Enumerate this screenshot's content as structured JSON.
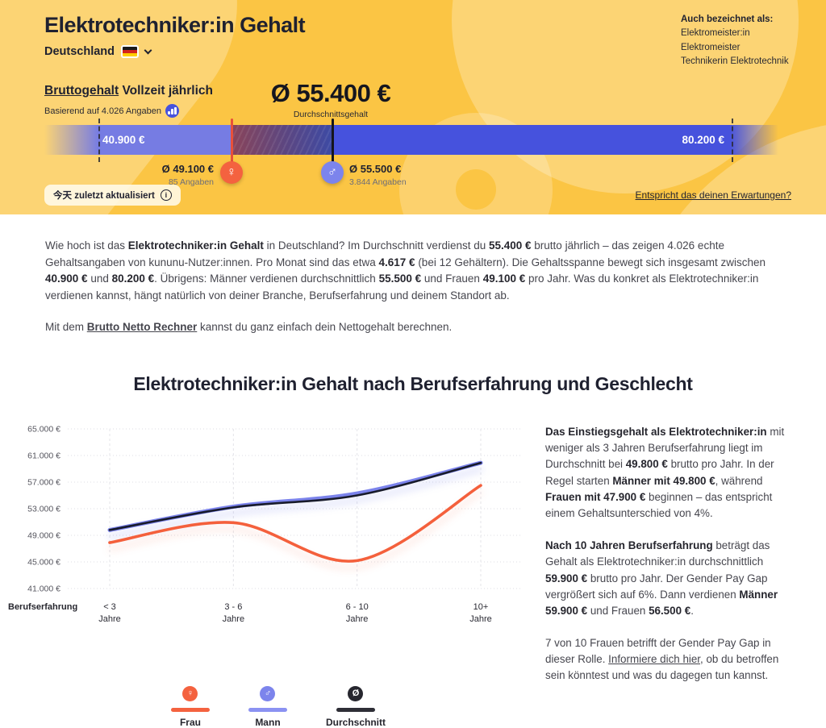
{
  "header": {
    "title": "Elektrotechniker:in Gehalt",
    "country": "Deutschland",
    "also_known": {
      "heading": "Auch bezeichnet als:",
      "items": [
        "Elektromeister:in",
        "Elektromeister",
        "Technikerin Elektrotechnik"
      ]
    },
    "salary_type_link": "Bruttogehalt",
    "salary_type_rest": " Vollzeit jährlich",
    "based_on": "Basierend auf 4.026 Angaben",
    "average": {
      "value": "Ø 55.400 €",
      "label": "Durchschnittsgehalt"
    },
    "range": {
      "min": "40.900 €",
      "max": "80.200 €"
    },
    "female": {
      "symbol": "♀",
      "value": "Ø 49.100 €",
      "count": "85 Angaben"
    },
    "male": {
      "symbol": "♂",
      "value": "Ø 55.500 €",
      "count": "3.844 Angaben"
    },
    "updated": "今天 zuletzt aktualisiert",
    "info_icon": "i",
    "expectations_link": "Entspricht das deinen Erwartungen?"
  },
  "intro": {
    "p1": [
      {
        "text": "Wie hoch ist das "
      },
      {
        "text": "Elektrotechniker:in Gehalt",
        "bold": true
      },
      {
        "text": " in Deutschland? Im Durchschnitt verdienst du "
      },
      {
        "text": "55.400 €",
        "bold": true
      },
      {
        "text": " brutto jährlich – das zeigen 4.026 echte Gehaltsangaben von kununu-Nutzer:innen. Pro Monat sind das etwa "
      },
      {
        "text": "4.617 €",
        "bold": true
      },
      {
        "text": " (bei 12 Gehältern). Die Gehaltsspanne bewegt sich insgesamt zwischen "
      },
      {
        "text": "40.900 €",
        "bold": true
      },
      {
        "text": " und "
      },
      {
        "text": "80.200 €",
        "bold": true
      },
      {
        "text": ". Übrigens: Männer verdienen durchschnittlich "
      },
      {
        "text": "55.500 €",
        "bold": true
      },
      {
        "text": " und Frauen "
      },
      {
        "text": "49.100 €",
        "bold": true
      },
      {
        "text": " pro Jahr. Was du konkret als Elektrotechniker:in verdienen kannst, hängt natürlich von deiner Branche, Berufserfahrung und deinem Standort ab."
      }
    ],
    "p2": [
      {
        "text": "Mit dem "
      },
      {
        "text": "Brutto Netto Rechner",
        "bold": true,
        "link": true
      },
      {
        "text": " kannst du ganz einfach dein Nettogehalt berechnen."
      }
    ]
  },
  "chart_section": {
    "title": "Elektrotechniker:in Gehalt nach Berufserfahrung und Geschlecht"
  },
  "chart_data": {
    "type": "line",
    "title": "Elektrotechniker:in Gehalt nach Berufserfahrung und Geschlecht",
    "xlabel": "Berufserfahrung",
    "ylabel": "",
    "categories": [
      "< 3 Jahre",
      "3 - 6 Jahre",
      "6 - 10 Jahre",
      "10+ Jahre"
    ],
    "x_tick_lines": [
      [
        "< 3",
        "Jahre"
      ],
      [
        "3 - 6",
        "Jahre"
      ],
      [
        "6 - 10",
        "Jahre"
      ],
      [
        "10+",
        "Jahre"
      ]
    ],
    "series": [
      {
        "name": "Mann",
        "color": "#7B83EB",
        "values": [
          49800,
          53300,
          55300,
          59900
        ]
      },
      {
        "name": "Durchschnitt",
        "color": "#181B2B",
        "values": [
          49800,
          53200,
          55000,
          59900
        ]
      },
      {
        "name": "Frau",
        "color": "#F4603C",
        "values": [
          47900,
          50900,
          45200,
          56500
        ]
      }
    ],
    "ylim": [
      41000,
      65000
    ],
    "y_ticks": [
      65000,
      61000,
      57000,
      53000,
      49000,
      45000,
      41000
    ],
    "y_tick_labels": [
      "65.000 €",
      "61.000 €",
      "57.000 €",
      "53.000 €",
      "49.000 €",
      "45.000 €",
      "41.000 €"
    ],
    "grid": true,
    "legend_position": "bottom"
  },
  "sidebar": {
    "p1": [
      {
        "text": "Das Einstiegsgehalt als Elektrotechniker:in",
        "bold": true
      },
      {
        "text": " mit weniger als 3 Jahren Berufserfahrung liegt im Durchschnitt bei "
      },
      {
        "text": "49.800 €",
        "bold": true
      },
      {
        "text": " brutto pro Jahr. In der Regel starten "
      },
      {
        "text": "Männer mit 49.800 €",
        "bold": true
      },
      {
        "text": ", während "
      },
      {
        "text": "Frauen mit 47.900 €",
        "bold": true
      },
      {
        "text": " beginnen – das entspricht einem Gehaltsunterschied von 4%."
      }
    ],
    "p2": [
      {
        "text": "Nach 10 Jahren Berufserfahrung",
        "bold": true
      },
      {
        "text": " beträgt das Gehalt als Elektrotechniker:in durchschnittlich "
      },
      {
        "text": "59.900 €",
        "bold": true
      },
      {
        "text": " brutto pro Jahr. Der Gender Pay Gap vergrößert sich auf 6%. Dann verdienen "
      },
      {
        "text": "Männer 59.900 €",
        "bold": true
      },
      {
        "text": " und Frauen "
      },
      {
        "text": "56.500 €",
        "bold": true
      },
      {
        "text": "."
      }
    ],
    "p3": [
      {
        "text": "7 von 10 Frauen betrifft der Gender Pay Gap in dieser Rolle. "
      },
      {
        "text": "Informiere dich hier",
        "link": true
      },
      {
        "text": ", ob du betroffen sein könntest und was du dagegen tun kannst."
      }
    ]
  },
  "legend": {
    "items": [
      {
        "label": "Frau",
        "symbol": "♀",
        "color": "#F4623F"
      },
      {
        "label": "Mann",
        "symbol": "♂",
        "color": "#7C84EC"
      },
      {
        "label": "Durchschnitt",
        "symbol": "Ø",
        "color": "#26262E"
      }
    ]
  },
  "colors": {
    "header_bg": "#FBC544",
    "bar_left": "#767CE3",
    "bar_right": "#4652DD",
    "female": "#F4623F",
    "male": "#7C84EC",
    "dark_text": "#1F2130"
  }
}
